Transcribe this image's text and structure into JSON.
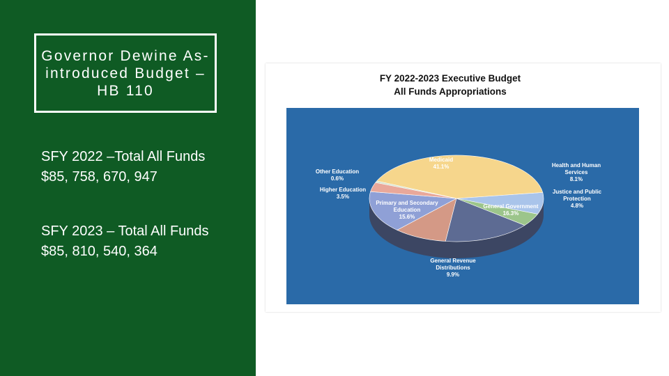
{
  "header": {
    "title": "Governor Dewine As-introduced Budget – HB 110"
  },
  "body": [
    "SFY 2022 –Total All Funds $85, 758, 670, 947",
    "SFY 2023 – Total All Funds $85, 810, 540, 364"
  ],
  "chart_data": {
    "type": "pie",
    "title": "FY 2022-2023 Executive Budget",
    "subtitle": "All Funds Appropriations",
    "categories": [
      "Health and Human Services",
      "Justice and Public Protection",
      "General Government",
      "General Revenue Distributions",
      "Primary and Secondary Education",
      "Higher Education",
      "Other Education",
      "Medicaid"
    ],
    "values": [
      8.1,
      4.8,
      16.3,
      9.9,
      15.6,
      3.5,
      0.6,
      41.1
    ],
    "value_labels": [
      "8.1%",
      "4.8%",
      "16.3%",
      "9.9%",
      "15.6%",
      "3.5%",
      "0.6%",
      "41.1%"
    ],
    "colors": [
      "#a9c4ea",
      "#9cc58b",
      "#5d6b93",
      "#d49986",
      "#8fa0d6",
      "#e9a89a",
      "#d3e2cc",
      "#f6d68c"
    ]
  }
}
